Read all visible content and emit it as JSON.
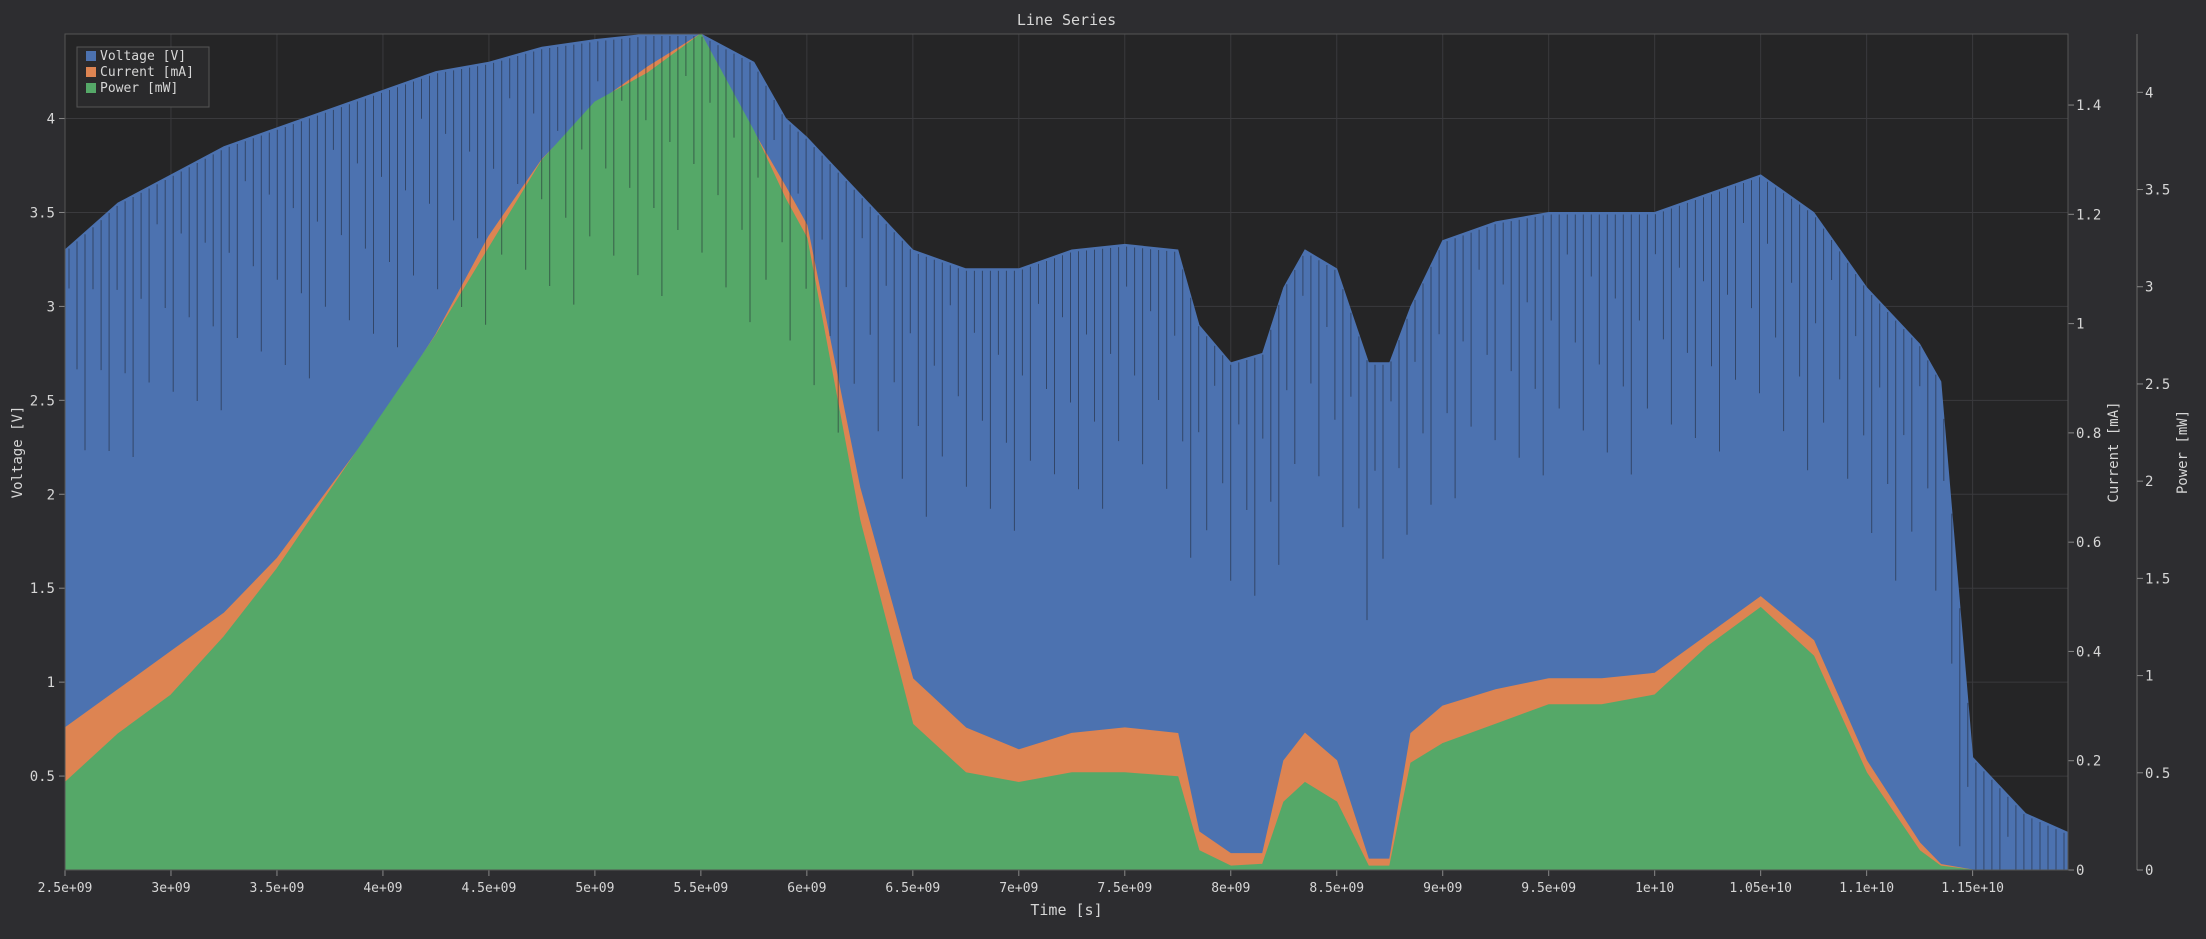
{
  "chart_data": {
    "type": "area",
    "title": "Line Series",
    "xlabel": "Time [s]",
    "xlim": [
      2500000000,
      11950000000
    ],
    "x_ticks": [
      "2.5e+09",
      "3e+09",
      "3.5e+09",
      "4e+09",
      "4.5e+09",
      "5e+09",
      "5.5e+09",
      "6e+09",
      "6.5e+09",
      "7e+09",
      "7.5e+09",
      "8e+09",
      "8.5e+09",
      "9e+09",
      "9.5e+09",
      "1e+10",
      "1.05e+10",
      "1.1e+10",
      "1.15e+10"
    ],
    "axes": {
      "voltage": {
        "label": "Voltage [V]",
        "side": "left",
        "lim": [
          0,
          4.45
        ],
        "ticks": [
          "0.5",
          "1",
          "1.5",
          "2",
          "2.5",
          "3",
          "3.5",
          "4"
        ]
      },
      "current": {
        "label": "Current [mA]",
        "side": "right",
        "lim": [
          0,
          1.53
        ],
        "ticks": [
          "0",
          "0.2",
          "0.4",
          "0.6",
          "0.8",
          "1",
          "1.2",
          "1.4"
        ]
      },
      "power": {
        "label": "Power [mW]",
        "side": "right",
        "lim": [
          0,
          4.3
        ],
        "ticks": [
          "0",
          "0.5",
          "1",
          "1.5",
          "2",
          "2.5",
          "3",
          "3.5",
          "4"
        ]
      }
    },
    "grid": true,
    "legend_position": "top-left",
    "x": [
      2500000000,
      2750000000,
      3000000000,
      3250000000,
      3500000000,
      3750000000,
      4000000000,
      4250000000,
      4500000000,
      4750000000,
      5000000000,
      5250000000,
      5500000000,
      5750000000,
      5900000000,
      6000000000,
      6250000000,
      6500000000,
      6750000000,
      7000000000,
      7250000000,
      7500000000,
      7750000000,
      7850000000,
      8000000000,
      8150000000,
      8250000000,
      8350000000,
      8500000000,
      8650000000,
      8750000000,
      8850000000,
      9000000000,
      9250000000,
      9500000000,
      9750000000,
      10000000000,
      10250000000,
      10500000000,
      10750000000,
      11000000000,
      11250000000,
      11350000000,
      11500000000,
      11750000000,
      11950000000
    ],
    "series": [
      {
        "name": "Voltage [V]",
        "axis": "voltage",
        "color": "#4c72b0",
        "values": [
          3.3,
          3.55,
          3.7,
          3.85,
          3.95,
          4.05,
          4.15,
          4.25,
          4.3,
          4.38,
          4.42,
          4.45,
          4.45,
          4.3,
          4.0,
          3.9,
          3.6,
          3.3,
          3.2,
          3.2,
          3.3,
          3.33,
          3.3,
          2.9,
          2.7,
          2.75,
          3.1,
          3.3,
          3.2,
          2.7,
          2.7,
          3.0,
          3.35,
          3.45,
          3.5,
          3.5,
          3.5,
          3.6,
          3.7,
          3.5,
          3.1,
          2.8,
          2.6,
          0.6,
          0.3,
          0.2
        ]
      },
      {
        "name": "Current [mA]",
        "axis": "current",
        "color": "#dd8452",
        "values": [
          0.26,
          0.33,
          0.4,
          0.47,
          0.57,
          0.7,
          0.83,
          0.98,
          1.16,
          1.3,
          1.4,
          1.47,
          1.53,
          1.35,
          1.25,
          1.18,
          0.7,
          0.35,
          0.26,
          0.22,
          0.25,
          0.26,
          0.25,
          0.07,
          0.03,
          0.03,
          0.2,
          0.25,
          0.2,
          0.02,
          0.02,
          0.25,
          0.3,
          0.33,
          0.35,
          0.35,
          0.36,
          0.43,
          0.5,
          0.42,
          0.2,
          0.05,
          0.01,
          0,
          0,
          0
        ]
      },
      {
        "name": "Power [mW]",
        "axis": "power",
        "color": "#55a868",
        "values": [
          0.45,
          0.7,
          0.9,
          1.2,
          1.55,
          1.95,
          2.35,
          2.75,
          3.2,
          3.65,
          3.95,
          4.1,
          4.3,
          3.8,
          3.45,
          3.25,
          1.8,
          0.75,
          0.5,
          0.45,
          0.5,
          0.5,
          0.48,
          0.1,
          0.02,
          0.03,
          0.35,
          0.45,
          0.35,
          0.02,
          0.02,
          0.55,
          0.65,
          0.75,
          0.85,
          0.85,
          0.9,
          1.15,
          1.35,
          1.1,
          0.5,
          0.1,
          0.02,
          0,
          0,
          0
        ]
      }
    ]
  }
}
